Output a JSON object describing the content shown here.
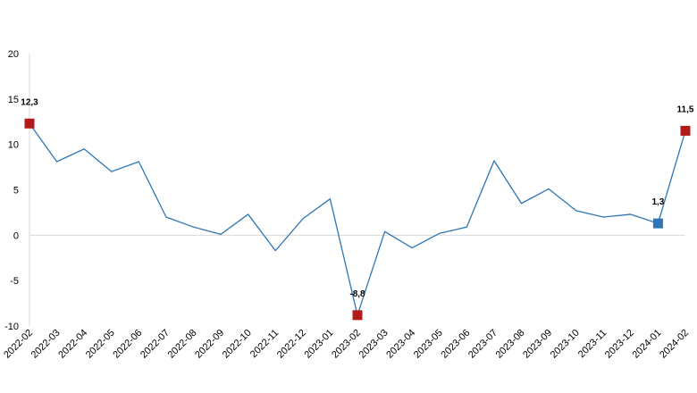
{
  "chart_data": {
    "type": "line",
    "title": "",
    "xlabel": "",
    "ylabel": "",
    "ylim": [
      -10,
      20
    ],
    "y_ticks": [
      "20",
      "15",
      "10",
      "5",
      "0",
      "-5",
      "-10"
    ],
    "y_tick_values": [
      20,
      15,
      10,
      5,
      0,
      -5,
      -10
    ],
    "grid": false,
    "zero_line": true,
    "line_color": "#2e75b6",
    "axis_color": "#d9d9d9",
    "categories": [
      "2022-02",
      "2022-03",
      "2022-04",
      "2022-05",
      "2022-06",
      "2022-07",
      "2022-08",
      "2022-09",
      "2022-10",
      "2022-11",
      "2022-12",
      "2023-01",
      "2023-02",
      "2023-03",
      "2023-04",
      "2023-05",
      "2023-06",
      "2023-07",
      "2023-08",
      "2023-09",
      "2023-10",
      "2023-11",
      "2023-12",
      "2024-01",
      "2024-02"
    ],
    "series": [
      {
        "values": [
          12.3,
          8.1,
          9.5,
          7.0,
          8.1,
          2.0,
          0.9,
          0.1,
          2.3,
          -1.7,
          1.8,
          4.0,
          -8.8,
          0.4,
          -1.4,
          0.2,
          0.9,
          8.2,
          3.5,
          5.1,
          2.7,
          2.0,
          2.3,
          1.3,
          11.5
        ]
      }
    ],
    "highlighted_points": [
      {
        "index": 0,
        "label": "12,3",
        "color": "#b31b1b"
      },
      {
        "index": 12,
        "label": "-8,8",
        "color": "#b31b1b"
      },
      {
        "index": 23,
        "label": "1,3",
        "color": "#2e75b6"
      },
      {
        "index": 24,
        "label": "11,5",
        "color": "#b31b1b"
      }
    ]
  }
}
